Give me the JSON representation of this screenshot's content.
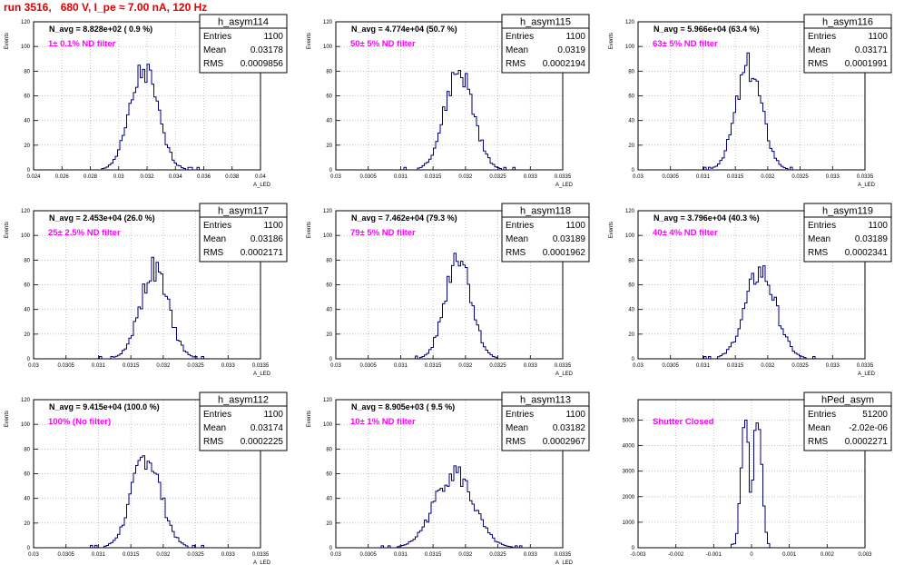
{
  "run_title": "run 3516,   680 V, I_pe ≈ 7.00 nA, 120 Hz",
  "stat_labels": {
    "entries": "Entries",
    "mean": "Mean",
    "rms": "RMS"
  },
  "chart_data": [
    {
      "type": "bar",
      "name": "h_asym114",
      "stats": {
        "entries": "1100",
        "mean": "0.03178",
        "rms": "0.0009856"
      },
      "n_avg": "N_avg = 8.828e+02 ( 0.9 %)",
      "filter": "1± 0.1% ND filter",
      "ylabel": "Events",
      "xlabel": "A_LED",
      "xlim": [
        0.024,
        0.04
      ],
      "ylim": [
        0,
        120
      ],
      "xticks": [
        "0.024",
        "0.026",
        "0.028",
        "0.03",
        "0.032",
        "0.034",
        "0.036",
        "0.038",
        "0.04"
      ],
      "yticks": [
        "0",
        "20",
        "40",
        "60",
        "80",
        "100",
        "120"
      ],
      "dist": {
        "mean": 0.03178,
        "rms": 0.0009856,
        "peak": 82,
        "seed": 1
      }
    },
    {
      "type": "bar",
      "name": "h_asym115",
      "stats": {
        "entries": "1100",
        "mean": "0.0319",
        "rms": "0.0002194"
      },
      "n_avg": "N_avg = 4.774e+04 (50.7 %)",
      "filter": "50± 5% ND filter",
      "ylabel": "Events",
      "xlabel": "A_LED",
      "xlim": [
        0.03,
        0.0335
      ],
      "ylim": [
        0,
        120
      ],
      "xticks": [
        "0.03",
        "0.0305",
        "0.031",
        "0.0315",
        "0.032",
        "0.0325",
        "0.033",
        "0.0335"
      ],
      "yticks": [
        "0",
        "20",
        "40",
        "60",
        "80",
        "100",
        "120"
      ],
      "dist": {
        "mean": 0.0319,
        "rms": 0.0002194,
        "peak": 82,
        "seed": 2
      }
    },
    {
      "type": "bar",
      "name": "h_asym116",
      "stats": {
        "entries": "1100",
        "mean": "0.03171",
        "rms": "0.0001991"
      },
      "n_avg": "N_avg = 5.966e+04 (63.4 %)",
      "filter": "63± 5% ND filter",
      "ylabel": "Events",
      "xlabel": "A_LED",
      "xlim": [
        0.03,
        0.0335
      ],
      "ylim": [
        0,
        120
      ],
      "xticks": [
        "0.03",
        "0.0305",
        "0.031",
        "0.0315",
        "0.032",
        "0.0325",
        "0.033",
        "0.0335"
      ],
      "yticks": [
        "0",
        "20",
        "40",
        "60",
        "80",
        "100",
        "120"
      ],
      "dist": {
        "mean": 0.03171,
        "rms": 0.0001991,
        "peak": 86,
        "seed": 3
      }
    },
    {
      "type": "bar",
      "name": "h_asym117",
      "stats": {
        "entries": "1100",
        "mean": "0.03186",
        "rms": "0.0002171"
      },
      "n_avg": "N_avg = 2.453e+04 (26.0 %)",
      "filter": "25± 2.5% ND filter",
      "ylabel": "Events",
      "xlabel": "A_LED",
      "xlim": [
        0.03,
        0.0335
      ],
      "ylim": [
        0,
        120
      ],
      "xticks": [
        "0.03",
        "0.0305",
        "0.031",
        "0.0315",
        "0.032",
        "0.0325",
        "0.033",
        "0.0335"
      ],
      "yticks": [
        "0",
        "20",
        "40",
        "60",
        "80",
        "100",
        "120"
      ],
      "dist": {
        "mean": 0.03186,
        "rms": 0.0002171,
        "peak": 74,
        "seed": 4
      }
    },
    {
      "type": "bar",
      "name": "h_asym118",
      "stats": {
        "entries": "1100",
        "mean": "0.03189",
        "rms": "0.0001962"
      },
      "n_avg": "N_avg = 7.462e+04 (79.3 %)",
      "filter": "79± 5% ND filter",
      "ylabel": "Events",
      "xlabel": "A_LED",
      "xlim": [
        0.03,
        0.0335
      ],
      "ylim": [
        0,
        120
      ],
      "xticks": [
        "0.03",
        "0.0305",
        "0.031",
        "0.0315",
        "0.032",
        "0.0325",
        "0.033",
        "0.0335"
      ],
      "yticks": [
        "0",
        "20",
        "40",
        "60",
        "80",
        "100",
        "120"
      ],
      "dist": {
        "mean": 0.03189,
        "rms": 0.0001962,
        "peak": 89,
        "seed": 5
      }
    },
    {
      "type": "bar",
      "name": "h_asym119",
      "stats": {
        "entries": "1100",
        "mean": "0.03189",
        "rms": "0.0002341"
      },
      "n_avg": "N_avg = 3.796e+04 (40.3 %)",
      "filter": "40± 4% ND filter",
      "ylabel": "Events",
      "xlabel": "A_LED",
      "xlim": [
        0.03,
        0.0335
      ],
      "ylim": [
        0,
        120
      ],
      "xticks": [
        "0.03",
        "0.0305",
        "0.031",
        "0.0315",
        "0.032",
        "0.0325",
        "0.033",
        "0.0335"
      ],
      "yticks": [
        "0",
        "20",
        "40",
        "60",
        "80",
        "100",
        "120"
      ],
      "dist": {
        "mean": 0.03189,
        "rms": 0.0002341,
        "peak": 73,
        "seed": 6
      }
    },
    {
      "type": "bar",
      "name": "h_asym112",
      "stats": {
        "entries": "1100",
        "mean": "0.03174",
        "rms": "0.0002225"
      },
      "n_avg": "N_avg = 9.415e+04 (100.0 %)",
      "filter": "100% (No filter)",
      "ylabel": "Events",
      "xlabel": "A_LED",
      "xlim": [
        0.03,
        0.0335
      ],
      "ylim": [
        0,
        120
      ],
      "xticks": [
        "0.03",
        "0.0305",
        "0.031",
        "0.0315",
        "0.032",
        "0.0325",
        "0.033",
        "0.0335"
      ],
      "yticks": [
        "0",
        "20",
        "40",
        "60",
        "80",
        "100",
        "120"
      ],
      "dist": {
        "mean": 0.03174,
        "rms": 0.0002225,
        "peak": 77,
        "seed": 7
      }
    },
    {
      "type": "bar",
      "name": "h_asym113",
      "stats": {
        "entries": "1100",
        "mean": "0.03182",
        "rms": "0.0002967"
      },
      "n_avg": "N_avg = 8.905e+03 ( 9.5 %)",
      "filter": "10± 1% ND filter",
      "ylabel": "Events",
      "xlabel": "A_LED",
      "xlim": [
        0.03,
        0.0335
      ],
      "ylim": [
        0,
        120
      ],
      "xticks": [
        "0.03",
        "0.0305",
        "0.031",
        "0.0315",
        "0.032",
        "0.0325",
        "0.033",
        "0.0335"
      ],
      "yticks": [
        "0",
        "20",
        "40",
        "60",
        "80",
        "100",
        "120"
      ],
      "dist": {
        "mean": 0.03182,
        "rms": 0.0002967,
        "peak": 63,
        "seed": 8
      }
    },
    {
      "type": "bar",
      "name": "hPed_asym",
      "stats": {
        "entries": "51200",
        "mean": "-2.02e-06",
        "rms": "0.0002271"
      },
      "n_avg": "",
      "filter": "Shutter Closed",
      "ylabel": "",
      "xlabel": "",
      "xlim": [
        -0.003,
        0.003
      ],
      "ylim": [
        0,
        5800
      ],
      "xticks": [
        "-0.003",
        "-0.002",
        "-0.001",
        "0",
        "0.001",
        "0.002",
        "0.003"
      ],
      "yticks": [
        "0",
        "1000",
        "2000",
        "3000",
        "4000",
        "5000"
      ],
      "dist": {
        "mean": -2.02e-06,
        "rms": 0.0002271,
        "peak": 5300,
        "seed": 9,
        "double": true
      }
    }
  ]
}
